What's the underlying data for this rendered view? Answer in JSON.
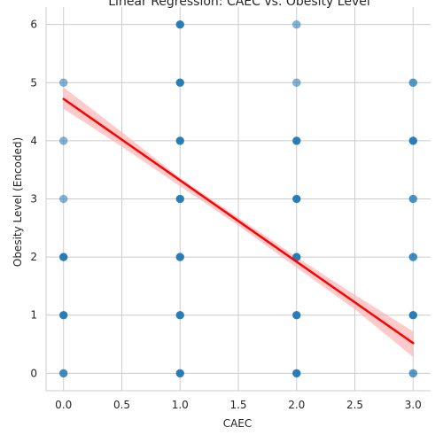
{
  "chart_data": {
    "type": "scatter",
    "title": "Linear Regression: CAEC vs. Obesity Level",
    "xlabel": "CAEC",
    "ylabel": "Obesity Level (Encoded)",
    "xlim": [
      -0.15,
      3.15
    ],
    "ylim": [
      -0.3,
      6.3
    ],
    "x_ticks": [
      "0.0",
      "0.5",
      "1.0",
      "1.5",
      "2.0",
      "2.5",
      "3.0"
    ],
    "y_ticks": [
      "0",
      "1",
      "2",
      "3",
      "4",
      "5",
      "6"
    ],
    "grid": true,
    "points": [
      {
        "x": 0,
        "y": 0,
        "alpha": 0.85
      },
      {
        "x": 0,
        "y": 1,
        "alpha": 0.95
      },
      {
        "x": 0,
        "y": 2,
        "alpha": 0.95
      },
      {
        "x": 0,
        "y": 3,
        "alpha": 0.55
      },
      {
        "x": 0,
        "y": 4,
        "alpha": 0.55
      },
      {
        "x": 0,
        "y": 5,
        "alpha": 0.55
      },
      {
        "x": 1,
        "y": 0,
        "alpha": 0.95
      },
      {
        "x": 1,
        "y": 1,
        "alpha": 0.95
      },
      {
        "x": 1,
        "y": 2,
        "alpha": 0.95
      },
      {
        "x": 1,
        "y": 3,
        "alpha": 0.95
      },
      {
        "x": 1,
        "y": 4,
        "alpha": 0.95
      },
      {
        "x": 1,
        "y": 5,
        "alpha": 0.95
      },
      {
        "x": 1,
        "y": 6,
        "alpha": 0.95
      },
      {
        "x": 2,
        "y": 0,
        "alpha": 0.95
      },
      {
        "x": 2,
        "y": 1,
        "alpha": 0.95
      },
      {
        "x": 2,
        "y": 2,
        "alpha": 0.95
      },
      {
        "x": 2,
        "y": 3,
        "alpha": 0.95
      },
      {
        "x": 2,
        "y": 4,
        "alpha": 0.95
      },
      {
        "x": 2,
        "y": 5,
        "alpha": 0.55
      },
      {
        "x": 2,
        "y": 6,
        "alpha": 0.55
      },
      {
        "x": 3,
        "y": 0,
        "alpha": 0.75
      },
      {
        "x": 3,
        "y": 1,
        "alpha": 0.95
      },
      {
        "x": 3,
        "y": 2,
        "alpha": 0.85
      },
      {
        "x": 3,
        "y": 3,
        "alpha": 0.8
      },
      {
        "x": 3,
        "y": 4,
        "alpha": 0.95
      },
      {
        "x": 3,
        "y": 5,
        "alpha": 0.75
      }
    ],
    "regression": {
      "x": [
        0,
        3
      ],
      "y": [
        4.72,
        0.52
      ]
    },
    "confidence_band": [
      {
        "x": 0.0,
        "lo": 4.55,
        "hi": 4.92
      },
      {
        "x": 0.5,
        "lo": 3.9,
        "hi": 4.15
      },
      {
        "x": 1.0,
        "lo": 3.22,
        "hi": 3.36
      },
      {
        "x": 1.5,
        "lo": 2.54,
        "hi": 2.68
      },
      {
        "x": 2.0,
        "lo": 1.82,
        "hi": 2.0
      },
      {
        "x": 2.5,
        "lo": 1.1,
        "hi": 1.35
      },
      {
        "x": 3.0,
        "lo": 0.28,
        "hi": 0.72
      }
    ],
    "colors": {
      "points": "#1f77b4",
      "line": "#ff0000",
      "band": "#ffb3b3",
      "grid": "#cccccc"
    }
  }
}
